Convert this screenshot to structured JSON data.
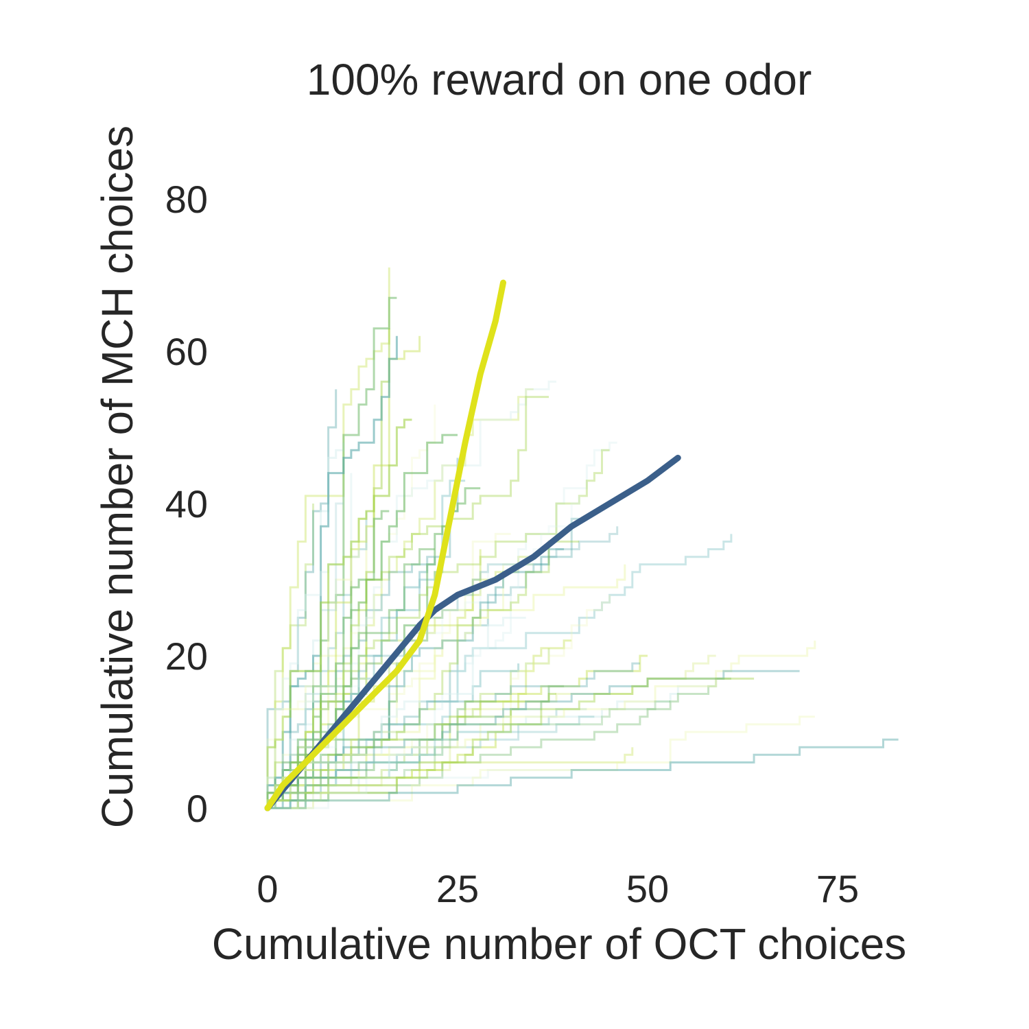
{
  "chart_data": {
    "type": "line",
    "title": "100% reward on one odor",
    "xlabel": "Cumulative number of OCT choices",
    "ylabel": "Cumulative number of MCH choices",
    "xlim": [
      0,
      80
    ],
    "ylim": [
      -5,
      90
    ],
    "xticks": [
      0,
      25,
      50,
      75
    ],
    "yticks": [
      0,
      20,
      40,
      60,
      80
    ],
    "grid": false,
    "series": [
      {
        "color": "#df e21b",
        "values_note": "",
        "x": [
          0,
          2,
          5,
          8,
          11,
          14,
          17,
          20,
          22,
          24,
          26,
          28,
          30,
          31
        ],
        "y": [
          0,
          3,
          6,
          9,
          12,
          15,
          18,
          22,
          28,
          38,
          48,
          57,
          64,
          69
        ]
      },
      {
        "color": "#3b5f8a",
        "x": [
          0,
          5,
          10,
          15,
          20,
          22,
          25,
          30,
          35,
          40,
          45,
          50,
          54
        ],
        "y": [
          0,
          6,
          12,
          18,
          24,
          26,
          28,
          30,
          33,
          37,
          40,
          43,
          46
        ]
      }
    ],
    "background_trajectories": {
      "count": 60,
      "colors": [
        "#9ccf3d",
        "#c8e25a",
        "#eef6b8",
        "#4fa3a5",
        "#8cc7c9",
        "#d8eeee",
        "#6fb96a"
      ]
    }
  }
}
